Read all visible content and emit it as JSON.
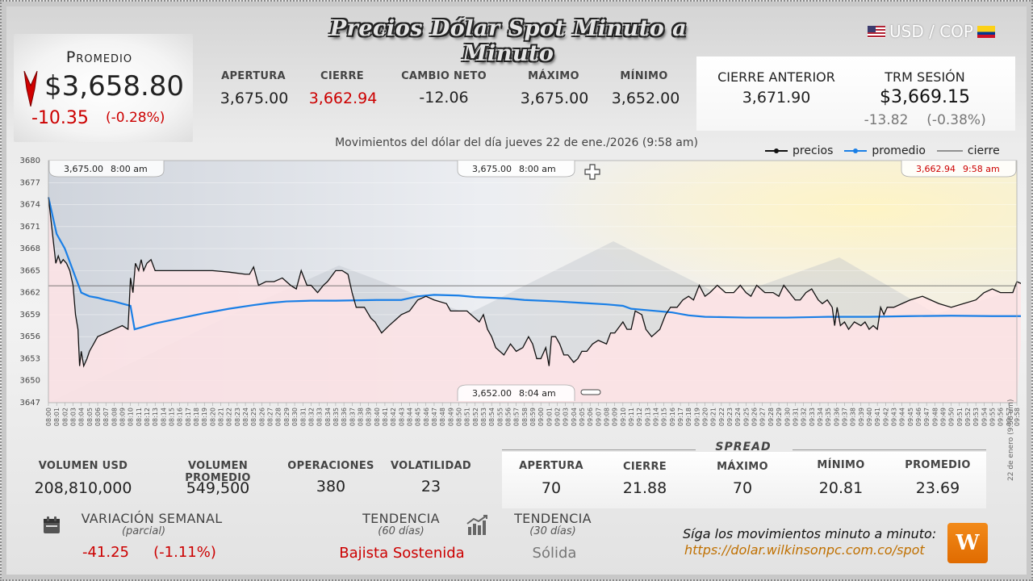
{
  "header": {
    "title": "Precios Dólar Spot Minuto a Minuto",
    "pair": "USD / COP"
  },
  "average": {
    "label": "Promedio",
    "value": "$3,658.80",
    "change": "-10.35",
    "change_pct": "(-0.28%)"
  },
  "stats": [
    {
      "label": "APERTURA",
      "value": "3,675.00",
      "color": "normal"
    },
    {
      "label": "CIERRE",
      "value": "3,662.94",
      "color": "red"
    },
    {
      "label": "CAMBIO NETO",
      "value": "-12.06",
      "color": "normal"
    },
    {
      "label": "MÁXIMO",
      "value": "3,675.00",
      "color": "normal"
    },
    {
      "label": "MÍNIMO",
      "value": "3,652.00",
      "color": "normal"
    }
  ],
  "previous": {
    "label": "CIERRE ANTERIOR",
    "value": "3,671.90"
  },
  "trm": {
    "label": "TRM SESIÓN",
    "value": "$3,669.15",
    "change": "-13.82",
    "change_pct": "(-0.38%)"
  },
  "chart_subtitle": "Movimientos del dólar del día jueves 22 de ene./2026 (9:58 am)",
  "legend": {
    "prices": "precios",
    "average": "promedio",
    "close": "cierre"
  },
  "colors": {
    "price_line": "#111111",
    "average_line": "#1a7fe6",
    "close_line": "#555555",
    "area_fill": "#ffe4e6",
    "negative": "#cc0000",
    "logo": "#ef7c0e"
  },
  "annotations": {
    "open": {
      "price": "3,675.00",
      "time": "8:00 am"
    },
    "max": {
      "price": "3,675.00",
      "time": "8:00 am"
    },
    "min": {
      "price": "3,652.00",
      "time": "8:04 am"
    },
    "last": {
      "price": "3,662.94",
      "time": "9:58 am"
    }
  },
  "chart_data": {
    "type": "line",
    "ylim": [
      3647,
      3680
    ],
    "yticks": [
      3647,
      3650,
      3653,
      3656,
      3659,
      3662,
      3665,
      3668,
      3671,
      3674,
      3677,
      3680
    ],
    "close_reference": 3662.94,
    "x_labels": [
      "08:00",
      "08:01",
      "08:02",
      "08:03",
      "08:04",
      "08:05",
      "08:06",
      "08:07",
      "08:08",
      "08:09",
      "08:10",
      "08:11",
      "08:12",
      "08:13",
      "08:14",
      "08:15",
      "08:16",
      "08:17",
      "08:18",
      "08:19",
      "08:20",
      "08:21",
      "08:22",
      "08:23",
      "08:24",
      "08:25",
      "08:26",
      "08:27",
      "08:28",
      "08:29",
      "08:30",
      "08:31",
      "08:32",
      "08:33",
      "08:34",
      "08:35",
      "08:36",
      "08:37",
      "08:38",
      "08:39",
      "08:40",
      "08:41",
      "08:42",
      "08:43",
      "08:44",
      "08:45",
      "08:46",
      "08:47",
      "08:48",
      "08:49",
      "08:50",
      "08:51",
      "08:52",
      "08:53",
      "08:54",
      "08:55",
      "08:56",
      "08:57",
      "08:58",
      "08:59",
      "09:00",
      "09:01",
      "09:02",
      "09:03",
      "09:04",
      "09:05",
      "09:06",
      "09:07",
      "09:08",
      "09:09",
      "09:10",
      "09:11",
      "09:12",
      "09:13",
      "09:14",
      "09:15",
      "09:16",
      "09:17",
      "09:18",
      "09:19",
      "09:20",
      "09:21",
      "09:22",
      "09:23",
      "09:24",
      "09:25",
      "09:26",
      "09:27",
      "09:28",
      "09:29",
      "09:30",
      "09:31",
      "09:32",
      "09:33",
      "09:34",
      "09:35",
      "09:36",
      "09:37",
      "09:38",
      "09:39",
      "09:40",
      "09:41",
      "09:42",
      "09:43",
      "09:44",
      "09:45",
      "09:46",
      "09:47",
      "09:48",
      "09:49",
      "09:50",
      "09:51",
      "09:52",
      "09:53",
      "09:54",
      "09:55",
      "09:56",
      "09:57",
      "09:58"
    ],
    "series": [
      {
        "name": "precios",
        "points": [
          [
            0,
            3675
          ],
          [
            0.3,
            3672
          ],
          [
            0.6,
            3669
          ],
          [
            0.9,
            3666
          ],
          [
            1.2,
            3667
          ],
          [
            1.5,
            3666
          ],
          [
            1.8,
            3666.5
          ],
          [
            2.2,
            3666
          ],
          [
            2.6,
            3665
          ],
          [
            3,
            3663
          ],
          [
            3.3,
            3659
          ],
          [
            3.6,
            3657
          ],
          [
            3.8,
            3652
          ],
          [
            4,
            3654
          ],
          [
            4.3,
            3652
          ],
          [
            4.7,
            3653
          ],
          [
            5,
            3654
          ],
          [
            5.5,
            3655
          ],
          [
            6,
            3656
          ],
          [
            7,
            3656.5
          ],
          [
            8,
            3657
          ],
          [
            9,
            3657.5
          ],
          [
            9.7,
            3657
          ],
          [
            10,
            3664
          ],
          [
            10.3,
            3662
          ],
          [
            10.6,
            3666
          ],
          [
            11,
            3665
          ],
          [
            11.3,
            3666.5
          ],
          [
            11.6,
            3665
          ],
          [
            12,
            3666
          ],
          [
            12.5,
            3666.5
          ],
          [
            13,
            3665
          ],
          [
            14,
            3665
          ],
          [
            16,
            3665
          ],
          [
            18,
            3665
          ],
          [
            20,
            3665
          ],
          [
            22,
            3664.8
          ],
          [
            24,
            3664.5
          ],
          [
            24.5,
            3664.5
          ],
          [
            25,
            3665.5
          ],
          [
            25.6,
            3663
          ],
          [
            26.5,
            3663.5
          ],
          [
            27.5,
            3663.5
          ],
          [
            28.5,
            3664
          ],
          [
            29.5,
            3663
          ],
          [
            30.2,
            3662.5
          ],
          [
            30.8,
            3665
          ],
          [
            31.5,
            3663
          ],
          [
            32,
            3663
          ],
          [
            32.8,
            3662
          ],
          [
            33.5,
            3663
          ],
          [
            34,
            3663.5
          ],
          [
            35,
            3665
          ],
          [
            35.8,
            3665
          ],
          [
            36.5,
            3664.5
          ],
          [
            37,
            3662
          ],
          [
            37.5,
            3660
          ],
          [
            38.5,
            3660
          ],
          [
            39.3,
            3658.5
          ],
          [
            39.8,
            3658
          ],
          [
            40.6,
            3656.5
          ],
          [
            41.5,
            3657.5
          ],
          [
            42.5,
            3658.5
          ],
          [
            43,
            3659
          ],
          [
            44,
            3659.5
          ],
          [
            45,
            3661
          ],
          [
            46,
            3661.5
          ],
          [
            47,
            3661
          ],
          [
            48.5,
            3660.5
          ],
          [
            49,
            3659.5
          ],
          [
            50.5,
            3659.5
          ],
          [
            51,
            3659.5
          ],
          [
            52,
            3658.5
          ],
          [
            52.5,
            3658
          ],
          [
            53,
            3659
          ],
          [
            53.5,
            3657
          ],
          [
            54,
            3656
          ],
          [
            54.5,
            3654.5
          ],
          [
            55.5,
            3653.5
          ],
          [
            56.3,
            3655
          ],
          [
            57,
            3654
          ],
          [
            57.8,
            3654.5
          ],
          [
            58.5,
            3656
          ],
          [
            59,
            3655
          ],
          [
            59.5,
            3653
          ],
          [
            60,
            3653
          ],
          [
            60.6,
            3654.5
          ],
          [
            61,
            3652
          ],
          [
            61.3,
            3656
          ],
          [
            61.8,
            3656
          ],
          [
            62.3,
            3655
          ],
          [
            62.8,
            3653.5
          ],
          [
            63.3,
            3653.5
          ],
          [
            64,
            3652.5
          ],
          [
            64.5,
            3653
          ],
          [
            65,
            3654
          ],
          [
            65.6,
            3654
          ],
          [
            66.3,
            3655
          ],
          [
            67,
            3655.5
          ],
          [
            68,
            3655
          ],
          [
            68.5,
            3656.5
          ],
          [
            69,
            3656.5
          ],
          [
            70,
            3658
          ],
          [
            70.5,
            3657
          ],
          [
            71,
            3657
          ],
          [
            71.5,
            3659.5
          ],
          [
            72.3,
            3659
          ],
          [
            72.8,
            3657
          ],
          [
            73.5,
            3656
          ],
          [
            74.5,
            3657
          ],
          [
            75.2,
            3659
          ],
          [
            75.8,
            3660
          ],
          [
            76.6,
            3660
          ],
          [
            77.3,
            3661
          ],
          [
            78,
            3661.5
          ],
          [
            78.6,
            3661
          ],
          [
            79.3,
            3663
          ],
          [
            80,
            3661.5
          ],
          [
            80.6,
            3662
          ],
          [
            81.5,
            3663
          ],
          [
            82.5,
            3662
          ],
          [
            83.5,
            3662
          ],
          [
            84.3,
            3663
          ],
          [
            85,
            3662
          ],
          [
            85.6,
            3661.5
          ],
          [
            86.3,
            3663
          ],
          [
            87.3,
            3662
          ],
          [
            88.3,
            3662
          ],
          [
            89,
            3661.5
          ],
          [
            89.6,
            3663
          ],
          [
            90.3,
            3662
          ],
          [
            91,
            3661
          ],
          [
            91.6,
            3661
          ],
          [
            92.3,
            3662
          ],
          [
            93,
            3662.5
          ],
          [
            93.8,
            3661
          ],
          [
            94.3,
            3660.5
          ],
          [
            94.9,
            3661
          ],
          [
            95.5,
            3660
          ],
          [
            95.8,
            3657.5
          ],
          [
            96.1,
            3660
          ],
          [
            96.5,
            3657.5
          ],
          [
            97,
            3658
          ],
          [
            97.5,
            3657
          ],
          [
            98.2,
            3658
          ],
          [
            99,
            3657.5
          ],
          [
            99.5,
            3658
          ],
          [
            100,
            3657
          ],
          [
            100.5,
            3657.5
          ],
          [
            101,
            3657
          ],
          [
            101.4,
            3660
          ],
          [
            101.8,
            3659
          ],
          [
            102.2,
            3660
          ],
          [
            103,
            3660
          ],
          [
            104,
            3660.5
          ],
          [
            105,
            3661
          ],
          [
            106.5,
            3661.5
          ],
          [
            107.5,
            3661
          ],
          [
            108.5,
            3660.5
          ],
          [
            110,
            3660
          ],
          [
            111.5,
            3660.5
          ],
          [
            113,
            3661
          ],
          [
            114,
            3662
          ],
          [
            115,
            3662.5
          ],
          [
            116,
            3662
          ],
          [
            117,
            3662
          ],
          [
            117.5,
            3662
          ],
          [
            118,
            3663.5
          ],
          [
            118.6,
            3663.2
          ],
          [
            119,
            3662.94
          ]
        ]
      },
      {
        "name": "promedio",
        "points": [
          [
            0,
            3675
          ],
          [
            1,
            3670
          ],
          [
            2,
            3668
          ],
          [
            3,
            3665
          ],
          [
            4,
            3662
          ],
          [
            5,
            3661.5
          ],
          [
            6,
            3661.3
          ],
          [
            7,
            3661
          ],
          [
            8,
            3660.8
          ],
          [
            9,
            3660.5
          ],
          [
            10,
            3660.2
          ],
          [
            10.5,
            3657
          ],
          [
            13,
            3657.8
          ],
          [
            16,
            3658.5
          ],
          [
            19,
            3659.2
          ],
          [
            22,
            3659.8
          ],
          [
            25,
            3660.3
          ],
          [
            27,
            3660.6
          ],
          [
            29,
            3660.8
          ],
          [
            32,
            3660.9
          ],
          [
            35,
            3660.9
          ],
          [
            40,
            3661
          ],
          [
            43,
            3661
          ],
          [
            45,
            3661.5
          ],
          [
            47,
            3661.7
          ],
          [
            50,
            3661.6
          ],
          [
            52,
            3661.4
          ],
          [
            56,
            3661.2
          ],
          [
            58,
            3661
          ],
          [
            62,
            3660.8
          ],
          [
            65,
            3660.6
          ],
          [
            68,
            3660.4
          ],
          [
            70,
            3660.2
          ],
          [
            71,
            3659.8
          ],
          [
            73,
            3659.6
          ],
          [
            76,
            3659.3
          ],
          [
            78,
            3658.9
          ],
          [
            80,
            3658.7
          ],
          [
            85,
            3658.6
          ],
          [
            90,
            3658.6
          ],
          [
            95,
            3658.7
          ],
          [
            100,
            3658.7
          ],
          [
            105,
            3658.8
          ],
          [
            110,
            3658.85
          ],
          [
            115,
            3658.8
          ],
          [
            119,
            3658.8
          ]
        ]
      }
    ]
  },
  "bottom": {
    "stats": [
      {
        "label": "VOLUMEN USD",
        "value": "208,810,000"
      },
      {
        "label": "VOLUMEN PROMEDIO",
        "value": "549,500"
      },
      {
        "label": "OPERACIONES",
        "value": "380"
      },
      {
        "label": "VOLATILIDAD",
        "value": "23"
      }
    ],
    "spread_title": "SPREAD",
    "spread": [
      {
        "label": "APERTURA",
        "value": "70"
      },
      {
        "label": "CIERRE",
        "value": "21.88"
      },
      {
        "label": "MÁXIMO",
        "value": "70"
      },
      {
        "label": "MÍNIMO",
        "value": "20.81"
      },
      {
        "label": "PROMEDIO",
        "value": "23.69"
      }
    ],
    "weekly": {
      "label": "VARIACIÓN SEMANAL",
      "sub": "(parcial)",
      "value": "-41.25",
      "pct": "(-1.11%)"
    },
    "trend60": {
      "label": "TENDENCIA",
      "sub": "(60 días)",
      "value": "Bajista Sostenida"
    },
    "trend30": {
      "label": "TENDENCIA",
      "sub": "(30 días)",
      "value": "Sólida"
    },
    "cta_text": "Síga los movimientos minuto a minuto:",
    "cta_link": "https://dolar.wilkinsonpc.com.co/spot",
    "logo_text": "W",
    "date_stamp": "22 de enero (9:58 am)"
  }
}
